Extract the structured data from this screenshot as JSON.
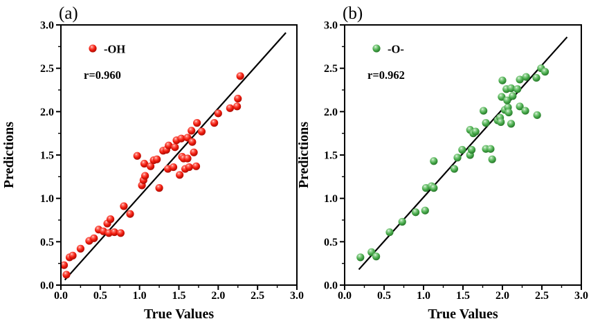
{
  "figure": {
    "background": "#ffffff",
    "frame_color": "#000000",
    "fit_line_color": "#000000"
  },
  "chart_data": [
    {
      "type": "scatter",
      "panel_label": "(a)",
      "xlabel": "True Values",
      "ylabel": "Predictions",
      "xlim": [
        0.0,
        3.0
      ],
      "ylim": [
        0.0,
        3.0
      ],
      "major_tick_step": 0.5,
      "minor_tick_step": 0.25,
      "grid": false,
      "tick_labels": [
        "0.0",
        "0.5",
        "1.0",
        "1.5",
        "2.0",
        "2.5",
        "3.0"
      ],
      "legend": {
        "position": "top-left",
        "label": "-OH"
      },
      "annotation": "r=0.960",
      "fit_line": {
        "from": [
          0.05,
          0.06
        ],
        "to": [
          2.86,
          2.91
        ]
      },
      "series": [
        {
          "name": "-OH",
          "marker": "sphere",
          "color_main": "#f21b0d",
          "color_light": "#ff8076",
          "color_dark": "#9e0a02",
          "points": [
            [
              0.04,
              0.23
            ],
            [
              0.07,
              0.12
            ],
            [
              0.11,
              0.32
            ],
            [
              0.15,
              0.34
            ],
            [
              0.25,
              0.42
            ],
            [
              0.36,
              0.51
            ],
            [
              0.42,
              0.54
            ],
            [
              0.48,
              0.64
            ],
            [
              0.54,
              0.62
            ],
            [
              0.59,
              0.71
            ],
            [
              0.61,
              0.6
            ],
            [
              0.63,
              0.76
            ],
            [
              0.68,
              0.61
            ],
            [
              0.76,
              0.6
            ],
            [
              0.8,
              0.91
            ],
            [
              0.88,
              0.82
            ],
            [
              0.97,
              1.49
            ],
            [
              1.03,
              1.15
            ],
            [
              1.05,
              1.21
            ],
            [
              1.07,
              1.26
            ],
            [
              1.06,
              1.4
            ],
            [
              1.14,
              1.37
            ],
            [
              1.18,
              1.44
            ],
            [
              1.22,
              1.45
            ],
            [
              1.25,
              1.12
            ],
            [
              1.3,
              1.55
            ],
            [
              1.34,
              1.56
            ],
            [
              1.37,
              1.61
            ],
            [
              1.45,
              1.59
            ],
            [
              1.47,
              1.67
            ],
            [
              1.53,
              1.69
            ],
            [
              1.61,
              1.7
            ],
            [
              1.66,
              1.78
            ],
            [
              1.67,
              1.65
            ],
            [
              1.69,
              1.53
            ],
            [
              1.73,
              1.87
            ],
            [
              1.79,
              1.77
            ],
            [
              1.36,
              1.34
            ],
            [
              1.43,
              1.36
            ],
            [
              1.51,
              1.27
            ],
            [
              1.54,
              1.48
            ],
            [
              1.56,
              1.46
            ],
            [
              1.61,
              1.46
            ],
            [
              1.58,
              1.34
            ],
            [
              1.63,
              1.36
            ],
            [
              1.72,
              1.37
            ],
            [
              1.95,
              1.87
            ],
            [
              2.0,
              1.98
            ],
            [
              2.15,
              2.04
            ],
            [
              2.24,
              2.06
            ],
            [
              2.25,
              2.15
            ],
            [
              2.28,
              2.41
            ]
          ]
        }
      ]
    },
    {
      "type": "scatter",
      "panel_label": "(b)",
      "xlabel": "True Values",
      "ylabel": "Predictions",
      "xlim": [
        0.0,
        3.0
      ],
      "ylim": [
        0.0,
        3.0
      ],
      "major_tick_step": 0.5,
      "minor_tick_step": 0.25,
      "grid": false,
      "tick_labels": [
        "0.0",
        "0.5",
        "1.0",
        "1.5",
        "2.0",
        "2.5",
        "3.0"
      ],
      "legend": {
        "position": "top-left",
        "label": "-O-"
      },
      "annotation": "r=0.962",
      "fit_line": {
        "from": [
          0.18,
          0.18
        ],
        "to": [
          2.82,
          2.86
        ]
      },
      "series": [
        {
          "name": "-O-",
          "marker": "sphere",
          "color_main": "#4cae4f",
          "color_light": "#a6dca6",
          "color_dark": "#1f6e22",
          "points": [
            [
              0.2,
              0.32
            ],
            [
              0.34,
              0.38
            ],
            [
              0.4,
              0.33
            ],
            [
              0.57,
              0.61
            ],
            [
              0.73,
              0.73
            ],
            [
              0.9,
              0.84
            ],
            [
              1.02,
              0.86
            ],
            [
              1.03,
              1.12
            ],
            [
              1.1,
              1.14
            ],
            [
              1.13,
              1.12
            ],
            [
              1.13,
              1.43
            ],
            [
              1.39,
              1.34
            ],
            [
              1.43,
              1.47
            ],
            [
              1.49,
              1.56
            ],
            [
              1.59,
              1.5
            ],
            [
              1.61,
              1.56
            ],
            [
              1.59,
              1.79
            ],
            [
              1.63,
              1.75
            ],
            [
              1.66,
              1.77
            ],
            [
              1.76,
              2.01
            ],
            [
              1.79,
              1.87
            ],
            [
              1.79,
              1.57
            ],
            [
              1.85,
              1.57
            ],
            [
              1.87,
              1.45
            ],
            [
              1.94,
              1.9
            ],
            [
              1.97,
              1.93
            ],
            [
              1.98,
              1.88
            ],
            [
              2.03,
              2.02
            ],
            [
              2.07,
              2.05
            ],
            [
              2.08,
              1.99
            ],
            [
              2.11,
              1.86
            ],
            [
              1.99,
              2.17
            ],
            [
              2.0,
              2.36
            ],
            [
              2.05,
              2.26
            ],
            [
              2.06,
              2.13
            ],
            [
              2.11,
              2.27
            ],
            [
              2.13,
              2.18
            ],
            [
              2.19,
              2.26
            ],
            [
              2.22,
              2.37
            ],
            [
              2.22,
              2.06
            ],
            [
              2.29,
              2.01
            ],
            [
              2.3,
              2.4
            ],
            [
              2.43,
              2.39
            ],
            [
              2.44,
              1.96
            ],
            [
              2.49,
              2.5
            ],
            [
              2.54,
              2.46
            ]
          ]
        }
      ]
    }
  ]
}
